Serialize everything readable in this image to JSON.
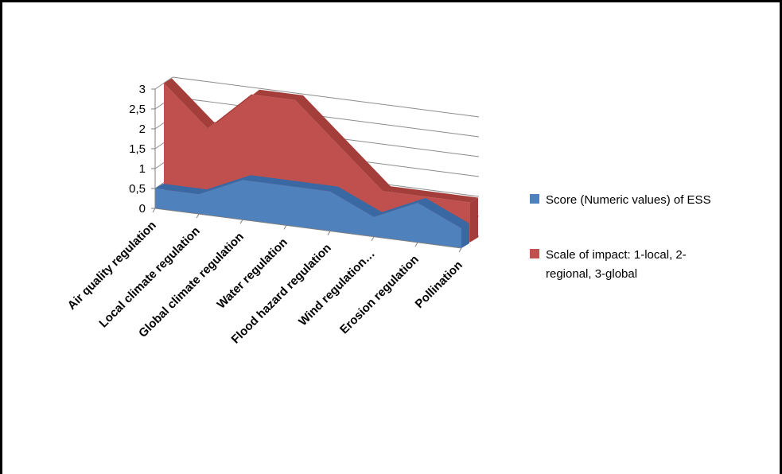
{
  "chart_data": {
    "type": "area",
    "is3d": true,
    "categories": [
      "Air quality regulation",
      "Local climate regulation",
      "Global climate regulation",
      "Water regulation",
      "Flood hazard regulation",
      "Wind regulation…",
      "Erosion regulation",
      "Pollination"
    ],
    "series": [
      {
        "name": "Score (Numeric values) of ESS",
        "values": [
          0.5,
          0.5,
          1.0,
          1.0,
          1.0,
          0.5,
          1.0,
          0.5
        ],
        "color": "#4F81BD",
        "depth": "front"
      },
      {
        "name": "Scale of impact: 1-local, 2-regional, 3-global",
        "values": [
          3,
          2,
          3,
          3,
          2,
          1,
          1,
          1
        ],
        "color": "#C0504D",
        "depth": "back"
      }
    ],
    "y_ticks": [
      "0",
      "0,5",
      "1",
      "1,5",
      "2",
      "2,5",
      "3"
    ],
    "ylim": [
      0,
      3
    ],
    "grid": true,
    "legend": "right",
    "legend_lines": [
      [
        "Score (Numeric values) of ESS"
      ],
      [
        "Scale of impact: 1-local, 2-",
        "regional, 3-global"
      ]
    ]
  }
}
